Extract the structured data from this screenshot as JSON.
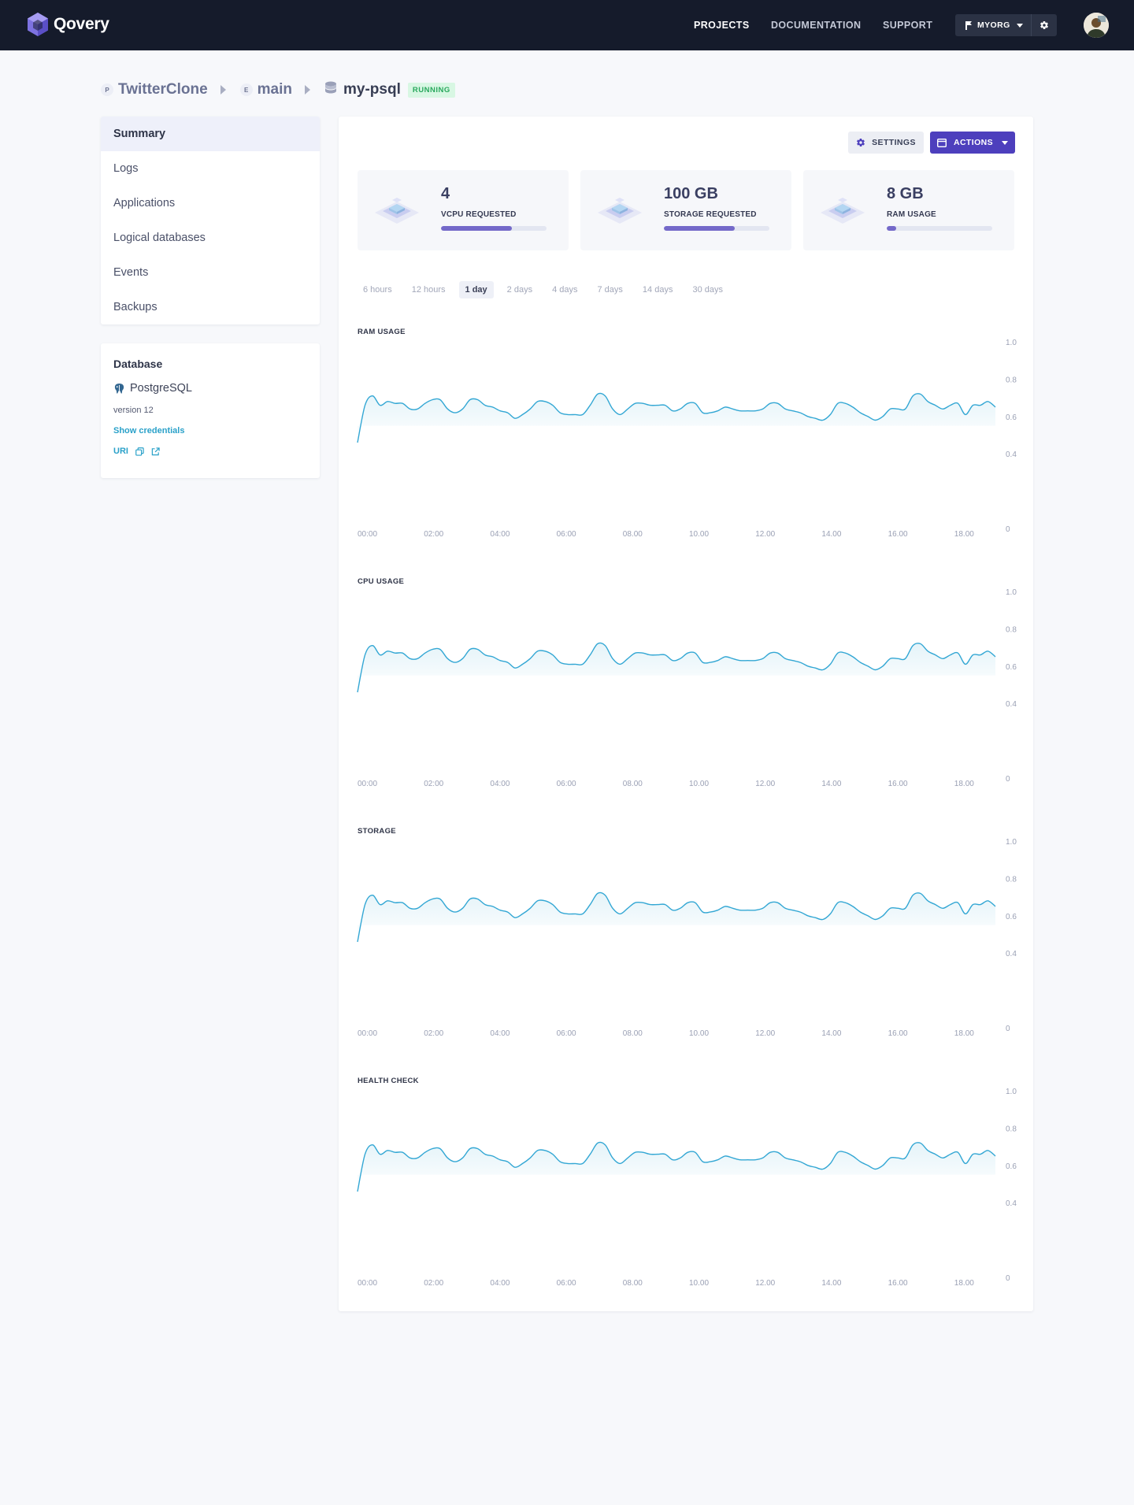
{
  "app": {
    "name": "Qovery"
  },
  "nav": {
    "projects": "PROJECTS",
    "documentation": "DOCUMENTATION",
    "support": "SUPPORT",
    "org": "MYORG"
  },
  "breadcrumb": {
    "project_letter": "P",
    "project": "TwitterClone",
    "env_letter": "E",
    "environment": "main",
    "database": "my-psql",
    "status": "RUNNING"
  },
  "sidebar": {
    "items": [
      {
        "label": "Summary",
        "active": true
      },
      {
        "label": "Logs"
      },
      {
        "label": "Applications"
      },
      {
        "label": "Logical databases"
      },
      {
        "label": "Events"
      },
      {
        "label": "Backups"
      }
    ]
  },
  "database_card": {
    "title": "Database",
    "engine": "PostgreSQL",
    "version": "version 12",
    "show_credentials": "Show credentials",
    "uri": "URI"
  },
  "toolbar": {
    "settings": "SETTINGS",
    "actions": "ACTIONS"
  },
  "stats": [
    {
      "value": "4",
      "label": "VCPU REQUESTED",
      "fill": 0.67
    },
    {
      "value": "100 GB",
      "label": "STORAGE REQUESTED",
      "fill": 0.67
    },
    {
      "value": "8 GB",
      "label": "RAM USAGE",
      "fill": 0.09
    }
  ],
  "time_ranges": [
    "6 hours",
    "12 hours",
    "1 day",
    "2 days",
    "4 days",
    "7 days",
    "14 days",
    "30 days"
  ],
  "active_range": "1 day",
  "colors": {
    "accent": "#4d3fbd",
    "line": "#33a7d4",
    "running": "#29a85d"
  },
  "chart_data": [
    {
      "type": "line",
      "title": "RAM USAGE",
      "x_ticks": [
        "00:00",
        "02:00",
        "04:00",
        "06:00",
        "08.00",
        "10.00",
        "12.00",
        "14.00",
        "16.00",
        "18.00"
      ],
      "y_ticks": [
        "1.0",
        "0.8",
        "0.6",
        "0.4",
        "0"
      ],
      "ylim": [
        0,
        1.0
      ],
      "grid": false,
      "series": [
        {
          "values": [
            0.46,
            0.66,
            0.71,
            0.66,
            0.68,
            0.67,
            0.67,
            0.64,
            0.64,
            0.67,
            0.69,
            0.69,
            0.64,
            0.62,
            0.64,
            0.69,
            0.69,
            0.66,
            0.65,
            0.63,
            0.62,
            0.59,
            0.61,
            0.64,
            0.68,
            0.68,
            0.66,
            0.62,
            0.61,
            0.61,
            0.61,
            0.66,
            0.72,
            0.71,
            0.64,
            0.61,
            0.64,
            0.67,
            0.67,
            0.66,
            0.66,
            0.66,
            0.63,
            0.64,
            0.67,
            0.67,
            0.62,
            0.62,
            0.63,
            0.65,
            0.64,
            0.63,
            0.63,
            0.63,
            0.64,
            0.67,
            0.67,
            0.64,
            0.63,
            0.62,
            0.6,
            0.59,
            0.58,
            0.61,
            0.67,
            0.67,
            0.65,
            0.62,
            0.6,
            0.58,
            0.6,
            0.64,
            0.64,
            0.64,
            0.71,
            0.72,
            0.68,
            0.66,
            0.64,
            0.66,
            0.67,
            0.61,
            0.66,
            0.66,
            0.68,
            0.65
          ]
        }
      ]
    },
    {
      "type": "line",
      "title": "CPU USAGE",
      "x_ticks": [
        "00:00",
        "02:00",
        "04:00",
        "06:00",
        "08.00",
        "10.00",
        "12.00",
        "14.00",
        "16.00",
        "18.00"
      ],
      "y_ticks": [
        "1.0",
        "0.8",
        "0.6",
        "0.4",
        "0"
      ],
      "ylim": [
        0,
        1.0
      ],
      "grid": false,
      "series": [
        {
          "values": [
            0.46,
            0.66,
            0.71,
            0.66,
            0.68,
            0.67,
            0.67,
            0.64,
            0.64,
            0.67,
            0.69,
            0.69,
            0.64,
            0.62,
            0.64,
            0.69,
            0.69,
            0.66,
            0.65,
            0.63,
            0.62,
            0.59,
            0.61,
            0.64,
            0.68,
            0.68,
            0.66,
            0.62,
            0.61,
            0.61,
            0.61,
            0.66,
            0.72,
            0.71,
            0.64,
            0.61,
            0.64,
            0.67,
            0.67,
            0.66,
            0.66,
            0.66,
            0.63,
            0.64,
            0.67,
            0.67,
            0.62,
            0.62,
            0.63,
            0.65,
            0.64,
            0.63,
            0.63,
            0.63,
            0.64,
            0.67,
            0.67,
            0.64,
            0.63,
            0.62,
            0.6,
            0.59,
            0.58,
            0.61,
            0.67,
            0.67,
            0.65,
            0.62,
            0.6,
            0.58,
            0.6,
            0.64,
            0.64,
            0.64,
            0.71,
            0.72,
            0.68,
            0.66,
            0.64,
            0.66,
            0.67,
            0.61,
            0.66,
            0.66,
            0.68,
            0.65
          ]
        }
      ]
    },
    {
      "type": "line",
      "title": "STORAGE",
      "x_ticks": [
        "00:00",
        "02:00",
        "04:00",
        "06:00",
        "08.00",
        "10.00",
        "12.00",
        "14.00",
        "16.00",
        "18.00"
      ],
      "y_ticks": [
        "1.0",
        "0.8",
        "0.6",
        "0.4",
        "0"
      ],
      "ylim": [
        0,
        1.0
      ],
      "grid": false,
      "series": [
        {
          "values": [
            0.46,
            0.66,
            0.71,
            0.66,
            0.68,
            0.67,
            0.67,
            0.64,
            0.64,
            0.67,
            0.69,
            0.69,
            0.64,
            0.62,
            0.64,
            0.69,
            0.69,
            0.66,
            0.65,
            0.63,
            0.62,
            0.59,
            0.61,
            0.64,
            0.68,
            0.68,
            0.66,
            0.62,
            0.61,
            0.61,
            0.61,
            0.66,
            0.72,
            0.71,
            0.64,
            0.61,
            0.64,
            0.67,
            0.67,
            0.66,
            0.66,
            0.66,
            0.63,
            0.64,
            0.67,
            0.67,
            0.62,
            0.62,
            0.63,
            0.65,
            0.64,
            0.63,
            0.63,
            0.63,
            0.64,
            0.67,
            0.67,
            0.64,
            0.63,
            0.62,
            0.6,
            0.59,
            0.58,
            0.61,
            0.67,
            0.67,
            0.65,
            0.62,
            0.6,
            0.58,
            0.6,
            0.64,
            0.64,
            0.64,
            0.71,
            0.72,
            0.68,
            0.66,
            0.64,
            0.66,
            0.67,
            0.61,
            0.66,
            0.66,
            0.68,
            0.65
          ]
        }
      ]
    },
    {
      "type": "line",
      "title": "HEALTH CHECK",
      "x_ticks": [
        "00:00",
        "02:00",
        "04:00",
        "06:00",
        "08.00",
        "10.00",
        "12.00",
        "14.00",
        "16.00",
        "18.00"
      ],
      "y_ticks": [
        "1.0",
        "0.8",
        "0.6",
        "0.4",
        "0"
      ],
      "ylim": [
        0,
        1.0
      ],
      "grid": false,
      "series": [
        {
          "values": [
            0.46,
            0.66,
            0.71,
            0.66,
            0.68,
            0.67,
            0.67,
            0.64,
            0.64,
            0.67,
            0.69,
            0.69,
            0.64,
            0.62,
            0.64,
            0.69,
            0.69,
            0.66,
            0.65,
            0.63,
            0.62,
            0.59,
            0.61,
            0.64,
            0.68,
            0.68,
            0.66,
            0.62,
            0.61,
            0.61,
            0.61,
            0.66,
            0.72,
            0.71,
            0.64,
            0.61,
            0.64,
            0.67,
            0.67,
            0.66,
            0.66,
            0.66,
            0.63,
            0.64,
            0.67,
            0.67,
            0.62,
            0.62,
            0.63,
            0.65,
            0.64,
            0.63,
            0.63,
            0.63,
            0.64,
            0.67,
            0.67,
            0.64,
            0.63,
            0.62,
            0.6,
            0.59,
            0.58,
            0.61,
            0.67,
            0.67,
            0.65,
            0.62,
            0.6,
            0.58,
            0.6,
            0.64,
            0.64,
            0.64,
            0.71,
            0.72,
            0.68,
            0.66,
            0.64,
            0.66,
            0.67,
            0.61,
            0.66,
            0.66,
            0.68,
            0.65
          ]
        }
      ]
    }
  ]
}
